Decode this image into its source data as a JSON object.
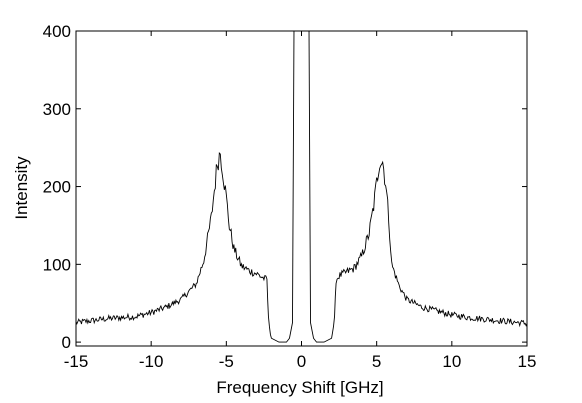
{
  "chart_data": {
    "type": "line",
    "xlabel": "Frequency Shift [GHz]",
    "ylabel": "Intensity",
    "xlim": [
      -15,
      15
    ],
    "ylim": [
      -5,
      400
    ],
    "x_ticks": [
      "-15",
      "-10",
      "-5",
      "0",
      "5",
      "10",
      "15"
    ],
    "y_ticks": [
      "0",
      "100",
      "200",
      "300",
      "400"
    ],
    "grid": false,
    "series": [
      {
        "color": "#000000",
        "x": [
          -15,
          -13,
          -11,
          -10,
          -9,
          -8,
          -7,
          -6.5,
          -6,
          -5.8,
          -5.6,
          -5.4,
          -5.2,
          -5,
          -4.8,
          -4.5,
          -4,
          -3.5,
          -3,
          -2.5,
          -2.3,
          -2.2,
          -2.0,
          -1.5,
          -1.0,
          -0.8,
          -0.6,
          -0.5,
          0.5,
          0.6,
          0.8,
          1.0,
          1.5,
          2.0,
          2.2,
          2.3,
          2.5,
          3,
          3.5,
          4,
          4.5,
          4.8,
          5,
          5.2,
          5.4,
          5.6,
          5.8,
          6,
          6.5,
          7,
          8,
          9,
          10,
          11,
          13,
          15
        ],
        "y": [
          25,
          30,
          33,
          38,
          45,
          55,
          75,
          105,
          160,
          195,
          230,
          245,
          215,
          185,
          150,
          120,
          98,
          92,
          88,
          82,
          80,
          30,
          5,
          0,
          0,
          5,
          25,
          400,
          400,
          25,
          5,
          0,
          0,
          5,
          30,
          80,
          85,
          90,
          95,
          110,
          140,
          175,
          205,
          235,
          232,
          205,
          160,
          100,
          72,
          55,
          45,
          40,
          35,
          32,
          28,
          24
        ]
      }
    ]
  }
}
